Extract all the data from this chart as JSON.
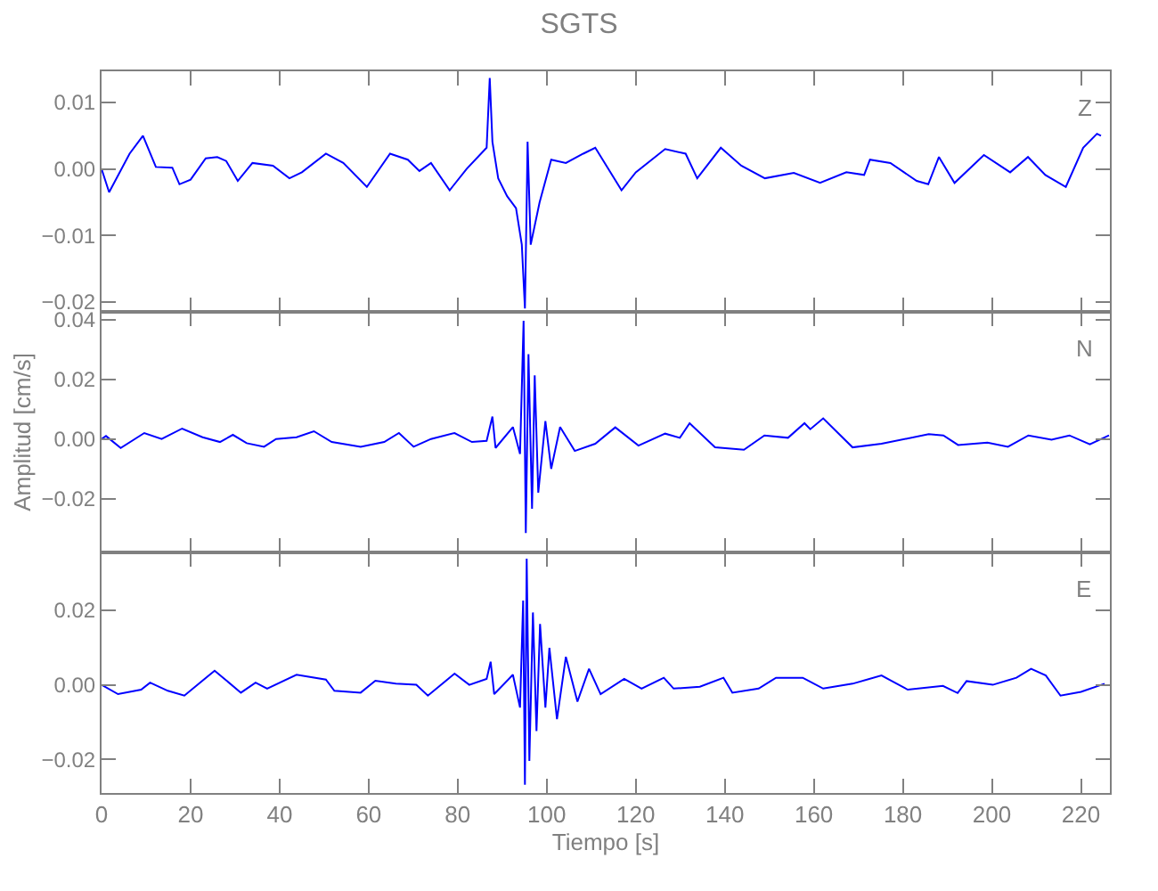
{
  "chart_data": [
    {
      "type": "line",
      "title": "SGTS",
      "annotations": [
        "Z"
      ],
      "tick_labels": "y",
      "xlim": [
        0,
        226.5
      ],
      "xticks": [
        0,
        20,
        40,
        60,
        80,
        100,
        120,
        140,
        160,
        180,
        200,
        220
      ],
      "ylim": [
        -0.0215,
        0.0147
      ],
      "yticks": [
        {
          "value": 0.01,
          "label": "0.01"
        },
        {
          "value": 0,
          "label": "0.00"
        },
        {
          "value": -0.01,
          "label": "−0.01"
        },
        {
          "value": -0.02,
          "label": "−0.02"
        }
      ],
      "x": [
        0,
        1.7,
        6.3,
        9.3,
        12.2,
        15.9,
        17.5,
        20,
        23.4,
        26,
        28,
        30.6,
        33.9,
        38.5,
        42.2,
        45,
        50.4,
        54.3,
        59.6,
        64.8,
        68.8,
        71.4,
        74,
        78.2,
        82,
        86.5,
        87.2,
        87.8,
        89.1,
        91.1,
        93.1,
        94.4,
        95.1,
        95.5,
        95.7,
        96.4,
        98.4,
        101,
        104.3,
        108.2,
        110.9,
        116.8,
        120,
        126.6,
        131.2,
        133.8,
        139.1,
        143.7,
        149,
        155.5,
        161.4,
        167.3,
        171.3,
        172.6,
        177.2,
        183.1,
        185.7,
        188.1,
        191.6,
        198.2,
        204.1,
        208.1,
        212,
        216.6,
        220.5,
        223.6,
        224.5
      ],
      "series": [
        {
          "color": "#0000ff",
          "values": [
            0,
            -0.0035,
            0.0023,
            0.005,
            0.0003,
            0.0002,
            -0.0023,
            -0.0016,
            0.0016,
            0.0018,
            0.0012,
            -0.0018,
            0.0009,
            0.0005,
            -0.0014,
            -0.0005,
            0.0023,
            0.0009,
            -0.0027,
            0.0023,
            0.0014,
            -0.0003,
            0.0009,
            -0.0032,
            0,
            0.0032,
            0.0137,
            0.0041,
            -0.0014,
            -0.0041,
            -0.0059,
            -0.0114,
            -0.021,
            -0.005,
            0.0041,
            -0.0114,
            -0.005,
            0.0014,
            0.0009,
            0.0023,
            0.0032,
            -0.0032,
            -0.0005,
            0.003,
            0.0023,
            -0.0014,
            0.0032,
            0.0005,
            -0.0014,
            -0.0006,
            -0.0021,
            -0.0005,
            -0.0009,
            0.0014,
            0.0009,
            -0.0018,
            -0.0023,
            0.0018,
            -0.0021,
            0.0021,
            -0.0005,
            0.0018,
            -0.0009,
            -0.0027,
            0.0032,
            0.0053,
            0.005
          ]
        }
      ]
    },
    {
      "type": "line",
      "ylabel": "Amplitud [cm/s]",
      "annotations": [
        "N"
      ],
      "tick_labels": "y",
      "xlim": [
        0,
        226.5
      ],
      "xticks": [
        0,
        20,
        40,
        60,
        80,
        100,
        120,
        140,
        160,
        180,
        200,
        220
      ],
      "ylim": [
        -0.038,
        0.0426
      ],
      "yticks": [
        {
          "value": 0.04,
          "label": "0.04"
        },
        {
          "value": 0.02,
          "label": "0.02"
        },
        {
          "value": 0,
          "label": "0.00"
        },
        {
          "value": -0.02,
          "label": "−0.02"
        }
      ],
      "x": [
        0,
        1,
        4.3,
        9.6,
        13.5,
        18.1,
        22.7,
        26.6,
        29.5,
        32.6,
        36.5,
        39.2,
        43.8,
        47.7,
        51.7,
        58.2,
        63.5,
        66.8,
        70.1,
        74,
        79.3,
        83.2,
        86.5,
        87.8,
        88.5,
        92.4,
        94,
        94.8,
        95.3,
        95.9,
        96.7,
        97.3,
        98.1,
        99.7,
        101,
        103,
        106.3,
        110.9,
        115.4,
        120.6,
        126.6,
        129.9,
        132.1,
        137.8,
        144.3,
        148.9,
        154.2,
        157.9,
        159.2,
        162.1,
        168.7,
        175.2,
        185.8,
        189.1,
        192.4,
        199,
        203.6,
        208.2,
        213.4,
        217.4,
        222,
        226.3
      ],
      "series": [
        {
          "color": "#0000ff",
          "values": [
            0,
            0.001,
            -0.003,
            0.002,
            0,
            0.0035,
            0.0006,
            -0.001,
            0.0014,
            -0.0014,
            -0.0026,
            0,
            0.0006,
            0.0026,
            -0.001,
            -0.0026,
            -0.001,
            0.002,
            -0.0026,
            0,
            0.002,
            -0.001,
            -0.0006,
            0.0075,
            -0.003,
            0.004,
            -0.005,
            0.0396,
            -0.0315,
            0.0284,
            -0.0234,
            0.0213,
            -0.018,
            0.006,
            -0.01,
            0.004,
            -0.004,
            -0.0016,
            0.0039,
            -0.0022,
            0.0018,
            0.0004,
            0.0053,
            -0.0028,
            -0.0036,
            0.0012,
            0.0004,
            0.0053,
            0.0033,
            0.0069,
            -0.0028,
            -0.0016,
            0.0016,
            0.0012,
            -0.002,
            -0.0012,
            -0.0026,
            0.0012,
            -0.0002,
            0.0012,
            -0.0018,
            0.0012
          ]
        }
      ]
    },
    {
      "type": "line",
      "xlabel": "Tiempo [s]",
      "annotations": [
        "E"
      ],
      "xlim": [
        0,
        226.5
      ],
      "xticks": [
        0,
        20,
        40,
        60,
        80,
        100,
        120,
        140,
        160,
        180,
        200,
        220
      ],
      "ylim": [
        -0.029,
        0.0355
      ],
      "yticks": [
        {
          "value": 0.02,
          "label": "0.02"
        },
        {
          "value": 0,
          "label": "0.00"
        },
        {
          "value": -0.02,
          "label": "−0.02"
        }
      ],
      "x": [
        0,
        3.7,
        8.9,
        10.9,
        14.9,
        18.6,
        25.4,
        31.3,
        34.6,
        37.2,
        43.8,
        50.4,
        52.3,
        58.2,
        61.5,
        66.1,
        70.7,
        73.3,
        79.3,
        82.6,
        86.5,
        87.4,
        88.2,
        92.4,
        94,
        94.7,
        95.1,
        95.5,
        96.1,
        96.9,
        97.7,
        98.5,
        99.7,
        100.6,
        102.3,
        104.3,
        106.9,
        109.5,
        112.1,
        117.4,
        121.3,
        126.3,
        128.5,
        134.4,
        139.7,
        141.7,
        147.6,
        151.5,
        157.5,
        162.1,
        168.7,
        175.2,
        181.1,
        189,
        192.3,
        194.3,
        200.2,
        205.5,
        208.8,
        212.1,
        215.4,
        220,
        225.3
      ],
      "series": [
        {
          "color": "#0000ff",
          "values": [
            0,
            -0.0025,
            -0.0013,
            0.0006,
            -0.0016,
            -0.0029,
            0.0038,
            -0.0021,
            0.0006,
            -0.001,
            0.0027,
            0.0014,
            -0.0016,
            -0.0021,
            0.0011,
            0.0003,
            0,
            -0.0029,
            0.003,
            0,
            0.0016,
            0.0062,
            -0.0025,
            0.0027,
            -0.0061,
            0.0226,
            -0.0268,
            0.0338,
            -0.0204,
            0.0194,
            -0.0124,
            0.0163,
            -0.0061,
            0.0099,
            -0.0092,
            0.0075,
            -0.0045,
            0.0043,
            -0.0025,
            0.0016,
            -0.001,
            0.0019,
            -0.001,
            -0.0005,
            0.0019,
            -0.0021,
            -0.001,
            0.0019,
            0.0019,
            -0.001,
            0.0003,
            0.0025,
            -0.0013,
            -0.0003,
            -0.0022,
            0.001,
            0,
            0.0019,
            0.0043,
            0.0025,
            -0.0029,
            -0.0019,
            0.0003
          ]
        }
      ]
    }
  ]
}
